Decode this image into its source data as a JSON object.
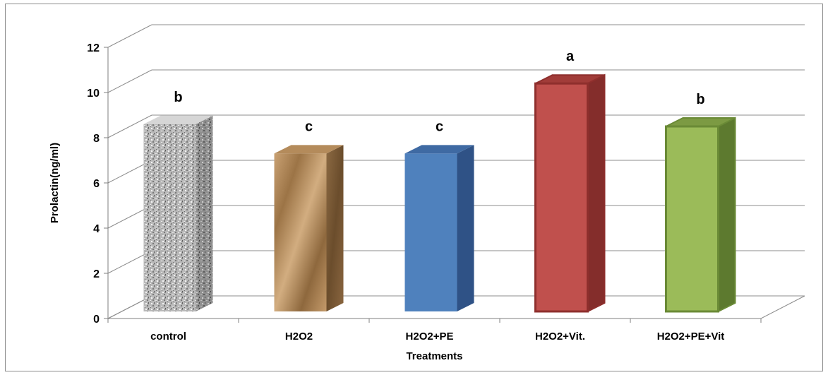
{
  "chart_data": {
    "type": "bar",
    "title": "",
    "xlabel": "Treatments",
    "ylabel": "Prolactin(ng/ml)",
    "ylim": [
      0,
      12
    ],
    "yticks": [
      0,
      2,
      4,
      6,
      8,
      10,
      12
    ],
    "categories": [
      "control",
      "H2O2",
      "H2O2+PE",
      "H2O2+Vit.",
      "H2O2+PE+Vit"
    ],
    "values": [
      8.6,
      7.3,
      7.3,
      10.4,
      8.5
    ],
    "significance_labels": [
      "b",
      "c",
      "c",
      "a",
      "b"
    ],
    "colors": [
      "#a8a8a8",
      "#b08a5a",
      "#4f81bd",
      "#c0504d",
      "#9bbb59"
    ],
    "grid": true,
    "legend": "none",
    "style": "3d-column"
  }
}
